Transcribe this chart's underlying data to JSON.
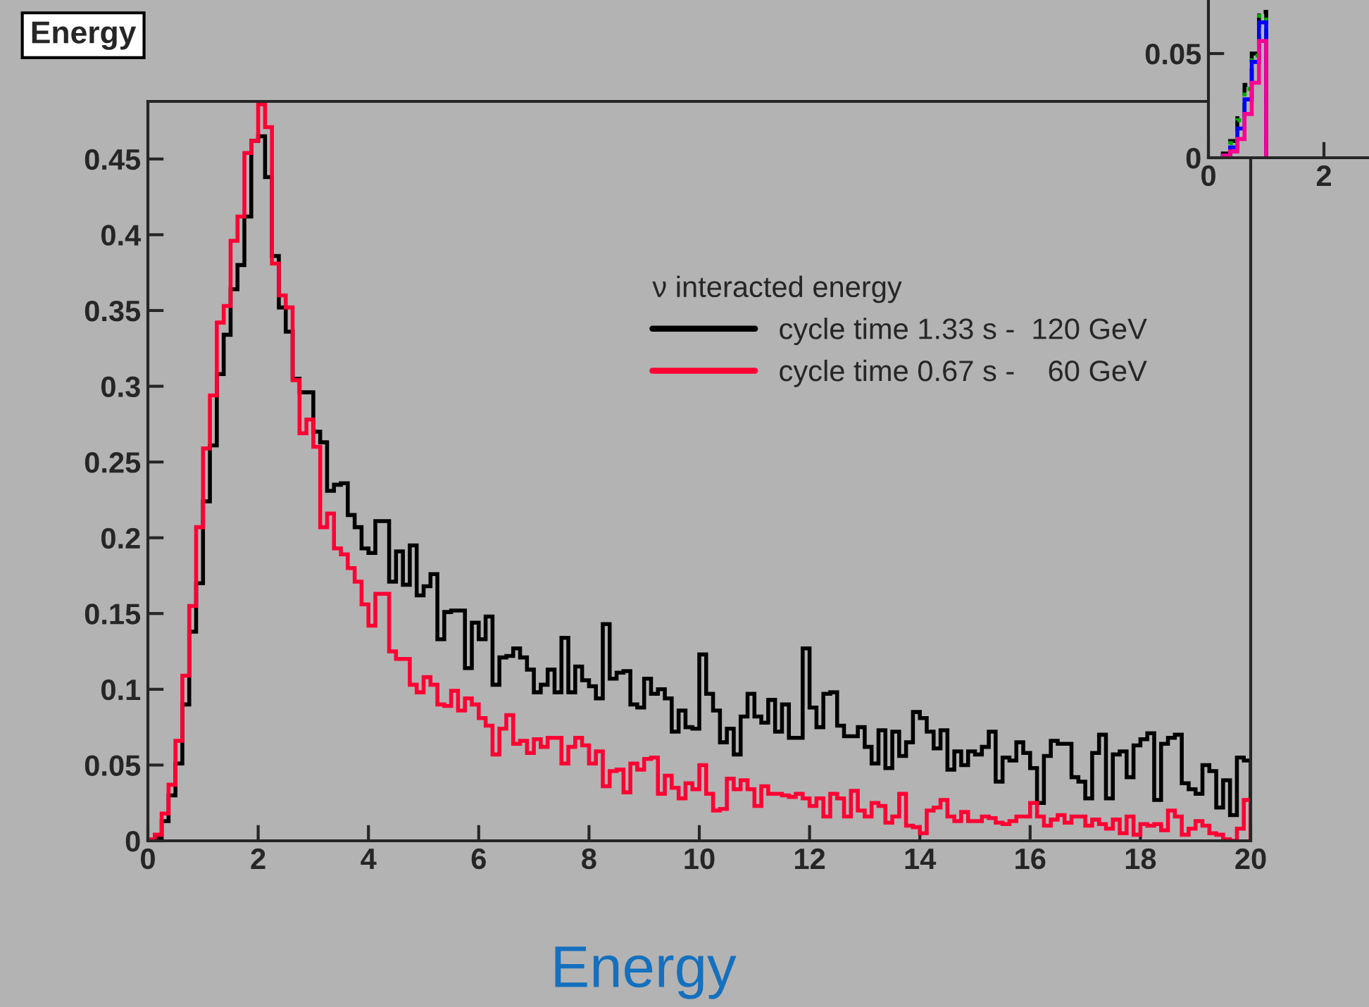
{
  "chart_data": [
    {
      "type": "histogram",
      "title": "Energy",
      "legend_title": "ν interacted energy",
      "legend": "top right",
      "annotations": [
        "Energy"
      ],
      "xlim": [
        0,
        20
      ],
      "xticks": [
        0,
        2,
        4,
        6,
        8,
        10,
        12,
        14,
        16,
        18,
        20
      ],
      "ylim": [
        0,
        0.488
      ],
      "yticks": [
        0,
        0.05,
        0.1,
        0.15,
        0.2,
        0.25,
        0.3,
        0.35,
        0.4,
        0.45
      ],
      "bins": [
        0,
        0.125,
        0.25,
        0.375,
        0.5,
        0.625,
        0.75,
        0.875,
        1,
        1.125,
        1.25,
        1.375,
        1.5,
        1.625,
        1.75,
        1.875,
        2,
        2.125,
        2.25,
        2.375,
        2.5,
        2.625,
        2.75,
        2.875,
        3,
        3.125,
        3.25,
        3.375,
        3.5,
        3.625,
        3.75,
        3.875,
        4,
        4.125,
        4.25,
        4.375,
        4.5,
        4.625,
        4.75,
        4.875,
        5,
        5.125,
        5.25,
        5.375,
        5.5,
        5.625,
        5.75,
        5.875,
        6,
        6.125,
        6.25,
        6.375,
        6.5,
        6.625,
        6.75,
        6.875,
        7,
        7.125,
        7.25,
        7.375,
        7.5,
        7.625,
        7.75,
        7.875,
        8,
        8.125,
        8.25,
        8.375,
        8.5,
        8.625,
        8.75,
        8.875,
        9,
        9.125,
        9.25,
        9.375,
        9.5,
        9.625,
        9.75,
        9.875,
        10,
        10.125,
        10.25,
        10.375,
        10.5,
        10.625,
        10.75,
        10.875,
        11,
        11.125,
        11.25,
        11.375,
        11.5,
        11.625,
        11.75,
        11.875,
        12,
        12.125,
        12.25,
        12.375,
        12.5,
        12.625,
        12.75,
        12.875,
        13,
        13.125,
        13.25,
        13.375,
        13.5,
        13.625,
        13.75,
        13.875,
        14,
        14.125,
        14.25,
        14.375,
        14.5,
        14.625,
        14.75,
        14.875,
        15,
        15.125,
        15.25,
        15.375,
        15.5,
        15.625,
        15.75,
        15.875,
        16,
        16.125,
        16.25,
        16.375,
        16.5,
        16.625,
        16.75,
        16.875,
        17,
        17.125,
        17.25,
        17.375,
        17.5,
        17.625,
        17.75,
        17.875,
        18,
        18.125,
        18.25,
        18.375,
        18.5,
        18.625,
        18.75,
        18.875,
        19,
        19.125,
        19.25,
        19.375,
        19.5,
        19.625,
        19.75,
        19.875,
        20
      ],
      "series": [
        {
          "name": "cycle time 1.33 s -  120 GeV",
          "color": "#000000",
          "values": [
            0.001,
            0.002,
            0.013,
            0.03,
            0.051,
            0.09,
            0.138,
            0.17,
            0.224,
            0.261,
            0.308,
            0.334,
            0.364,
            0.38,
            0.412,
            0.462,
            0.465,
            0.438,
            0.386,
            0.352,
            0.336,
            0.305,
            0.296,
            0.296,
            0.27,
            0.263,
            0.231,
            0.235,
            0.236,
            0.215,
            0.207,
            0.193,
            0.19,
            0.211,
            0.211,
            0.171,
            0.191,
            0.169,
            0.195,
            0.162,
            0.168,
            0.176,
            0.133,
            0.151,
            0.152,
            0.152,
            0.114,
            0.144,
            0.133,
            0.148,
            0.103,
            0.121,
            0.122,
            0.127,
            0.121,
            0.113,
            0.098,
            0.103,
            0.113,
            0.098,
            0.134,
            0.098,
            0.115,
            0.106,
            0.102,
            0.094,
            0.143,
            0.107,
            0.111,
            0.112,
            0.09,
            0.088,
            0.107,
            0.097,
            0.1,
            0.094,
            0.072,
            0.086,
            0.075,
            0.074,
            0.123,
            0.097,
            0.086,
            0.065,
            0.074,
            0.057,
            0.082,
            0.097,
            0.082,
            0.078,
            0.093,
            0.072,
            0.09,
            0.068,
            0.068,
            0.127,
            0.088,
            0.075,
            0.097,
            0.098,
            0.076,
            0.069,
            0.069,
            0.075,
            0.062,
            0.051,
            0.073,
            0.048,
            0.072,
            0.056,
            0.065,
            0.085,
            0.081,
            0.072,
            0.061,
            0.073,
            0.047,
            0.059,
            0.05,
            0.059,
            0.057,
            0.062,
            0.072,
            0.039,
            0.055,
            0.053,
            0.065,
            0.058,
            0.048,
            0.025,
            0.056,
            0.066,
            0.064,
            0.064,
            0.042,
            0.039,
            0.028,
            0.058,
            0.07,
            0.028,
            0.057,
            0.059,
            0.042,
            0.063,
            0.067,
            0.071,
            0.027,
            0.064,
            0.068,
            0.07,
            0.038,
            0.034,
            0.031,
            0.05,
            0.046,
            0.022,
            0.04,
            0.017,
            0.055,
            0.053
          ]
        },
        {
          "name": "cycle time 0.67 s -    60 GeV",
          "color": "#ff0033",
          "values": [
            0.001,
            0.004,
            0.018,
            0.037,
            0.066,
            0.109,
            0.155,
            0.207,
            0.259,
            0.294,
            0.342,
            0.353,
            0.396,
            0.412,
            0.454,
            0.462,
            0.486,
            0.471,
            0.381,
            0.36,
            0.352,
            0.304,
            0.269,
            0.278,
            0.26,
            0.207,
            0.216,
            0.193,
            0.189,
            0.18,
            0.171,
            0.156,
            0.142,
            0.163,
            0.163,
            0.125,
            0.12,
            0.12,
            0.103,
            0.098,
            0.108,
            0.103,
            0.09,
            0.089,
            0.099,
            0.086,
            0.094,
            0.09,
            0.081,
            0.076,
            0.057,
            0.074,
            0.083,
            0.064,
            0.066,
            0.058,
            0.067,
            0.062,
            0.068,
            0.068,
            0.051,
            0.062,
            0.068,
            0.063,
            0.051,
            0.059,
            0.036,
            0.046,
            0.047,
            0.032,
            0.051,
            0.047,
            0.054,
            0.055,
            0.031,
            0.043,
            0.035,
            0.028,
            0.038,
            0.034,
            0.05,
            0.031,
            0.02,
            0.021,
            0.041,
            0.034,
            0.04,
            0.034,
            0.023,
            0.036,
            0.031,
            0.031,
            0.03,
            0.029,
            0.031,
            0.028,
            0.023,
            0.028,
            0.016,
            0.031,
            0.028,
            0.016,
            0.033,
            0.02,
            0.016,
            0.025,
            0.023,
            0.012,
            0.016,
            0.031,
            0.01,
            0.009,
            0.005,
            0.02,
            0.022,
            0.027,
            0.016,
            0.013,
            0.019,
            0.013,
            0.013,
            0.016,
            0.015,
            0.012,
            0.011,
            0.013,
            0.016,
            0.016,
            0.025,
            0.016,
            0.01,
            0.014,
            0.017,
            0.012,
            0.016,
            0.016,
            0.01,
            0.014,
            0.011,
            0.008,
            0.014,
            0.005,
            0.016,
            0.004,
            0.011,
            0.01,
            0.011,
            0.007,
            0.02,
            0.016,
            0.004,
            0.008,
            0.013,
            0.01,
            0.005,
            0.004,
            0.001,
            0.0,
            0.008,
            0.027
          ]
        }
      ]
    },
    {
      "type": "histogram",
      "xlim": [
        0,
        2.78
      ],
      "xticks": [
        0,
        2
      ],
      "ylim": [
        0,
        0.0757
      ],
      "yticks": [
        0,
        0.05
      ],
      "bins": [
        0.25,
        0.375,
        0.5,
        0.625,
        0.75,
        0.875,
        1
      ],
      "series": [
        {
          "color": "#000000",
          "line_style": "dashed",
          "values": [
            0.002,
            0.008,
            0.02,
            0.035,
            0.05,
            0.07
          ]
        },
        {
          "color": "#00aa00",
          "line_style": "dotted",
          "values": [
            0.002,
            0.007,
            0.018,
            0.033,
            0.049,
            0.068
          ]
        },
        {
          "color": "#0000ff",
          "values": [
            0.001,
            0.005,
            0.014,
            0.028,
            0.046,
            0.065
          ]
        },
        {
          "color": "#ff0090",
          "values": [
            0.001,
            0.003,
            0.009,
            0.021,
            0.036,
            0.056
          ]
        }
      ]
    }
  ]
}
